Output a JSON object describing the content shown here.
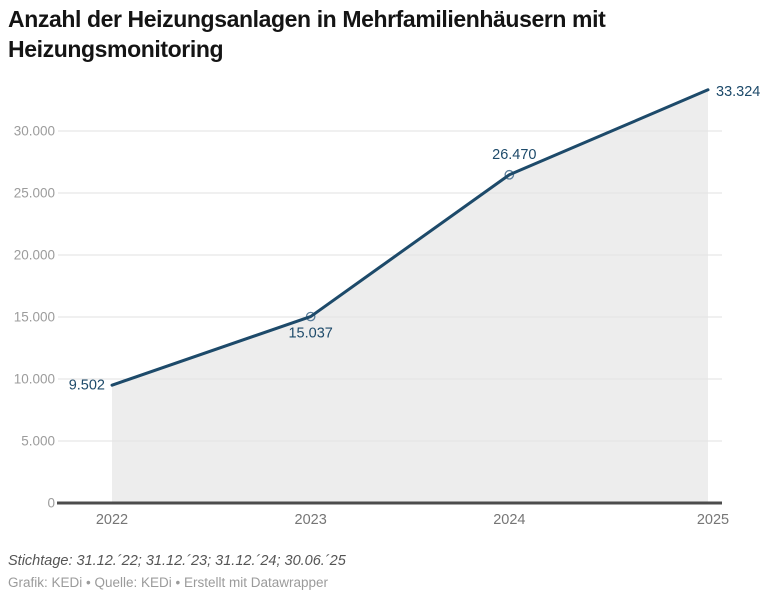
{
  "title": "Anzahl der Heizungsanlagen in Mehrfamilienhäusern mit Heizungsmonitoring",
  "footer": {
    "notes": "Stichtage: 31.12.´22; 31.12.´23; 31.12.´24; 30.06.´25",
    "byline": "Grafik: KEDi • Quelle: KEDi • Erstellt mit Datawrapper"
  },
  "chart_data": {
    "type": "area",
    "title": "Anzahl der Heizungsanlagen in Mehrfamilienhäusern mit Heizungsmonitoring",
    "x": [
      "2022",
      "2023",
      "2024",
      "2025"
    ],
    "series": [
      {
        "name": "Heizungsanlagen",
        "values": [
          9502,
          15037,
          26470,
          33324
        ]
      }
    ],
    "value_labels": [
      "9.502",
      "15.037",
      "26.470",
      "33.324"
    ],
    "value_label_positions": [
      "left",
      "below",
      "above",
      "right"
    ],
    "marker_points": [
      1,
      2
    ],
    "y_ticks": [
      0,
      5000,
      10000,
      15000,
      20000,
      25000,
      30000
    ],
    "y_tick_labels": [
      "0",
      "5.000",
      "10.000",
      "15.000",
      "20.000",
      "25.000",
      "30.000"
    ],
    "ylim": [
      0,
      33324
    ],
    "grid": true,
    "legend": false,
    "colors": {
      "line": "#1d4a6a",
      "area": "#ededed",
      "grid": "#e2e2e2",
      "axis": "#4c4c4c",
      "marker": "#5a7e9b",
      "value_label": "#1d4a6a",
      "y_tick": "#9c9c9c",
      "x_tick": "#757575"
    }
  }
}
